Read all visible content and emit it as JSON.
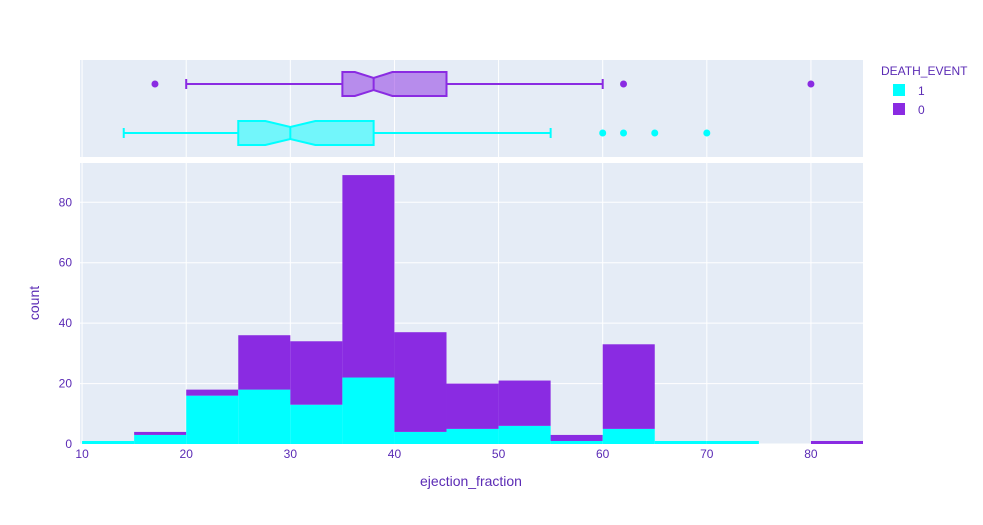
{
  "chart_data": {
    "type": "histogram",
    "xlabel": "ejection_fraction",
    "ylabel": "count",
    "xlim": [
      9.8,
      85
    ],
    "ylim": [
      0,
      93
    ],
    "x_ticks": [
      10,
      20,
      30,
      40,
      50,
      60,
      70,
      80
    ],
    "y_ticks": [
      0,
      20,
      40,
      60,
      80
    ],
    "stacked": true,
    "bin_width": 5,
    "bins": [
      10,
      15,
      20,
      25,
      30,
      35,
      40,
      45,
      50,
      55,
      60,
      65,
      70,
      75,
      80
    ],
    "legend": {
      "title": "DEATH_EVENT",
      "placement": "top-right",
      "entries": [
        {
          "name": "1",
          "color": "#00ffff"
        },
        {
          "name": "0",
          "color": "#8a2be2"
        }
      ]
    },
    "series": [
      {
        "name": "1",
        "color": "#00ffff",
        "values": [
          1,
          3,
          16,
          18,
          13,
          22,
          4,
          5,
          6,
          1,
          5,
          1,
          1,
          0,
          0
        ]
      },
      {
        "name": "0",
        "color": "#8a2be2",
        "values": [
          0,
          1,
          2,
          18,
          21,
          67,
          33,
          15,
          15,
          2,
          28,
          0,
          0,
          0,
          1
        ]
      }
    ],
    "marginal_box": [
      {
        "name": "0",
        "color": "#8a2be2",
        "whisker_low": 20,
        "q1": 35,
        "median": 38,
        "q3": 45,
        "whisker_high": 60,
        "notch_low": 36.2,
        "notch_high": 39.8,
        "outliers": [
          17,
          62,
          80
        ]
      },
      {
        "name": "1",
        "color": "#00ffff",
        "whisker_low": 14,
        "q1": 25,
        "median": 30,
        "q3": 38,
        "whisker_high": 55,
        "notch_low": 27.6,
        "notch_high": 32.4,
        "outliers": [
          60,
          62,
          65,
          70
        ]
      }
    ]
  }
}
